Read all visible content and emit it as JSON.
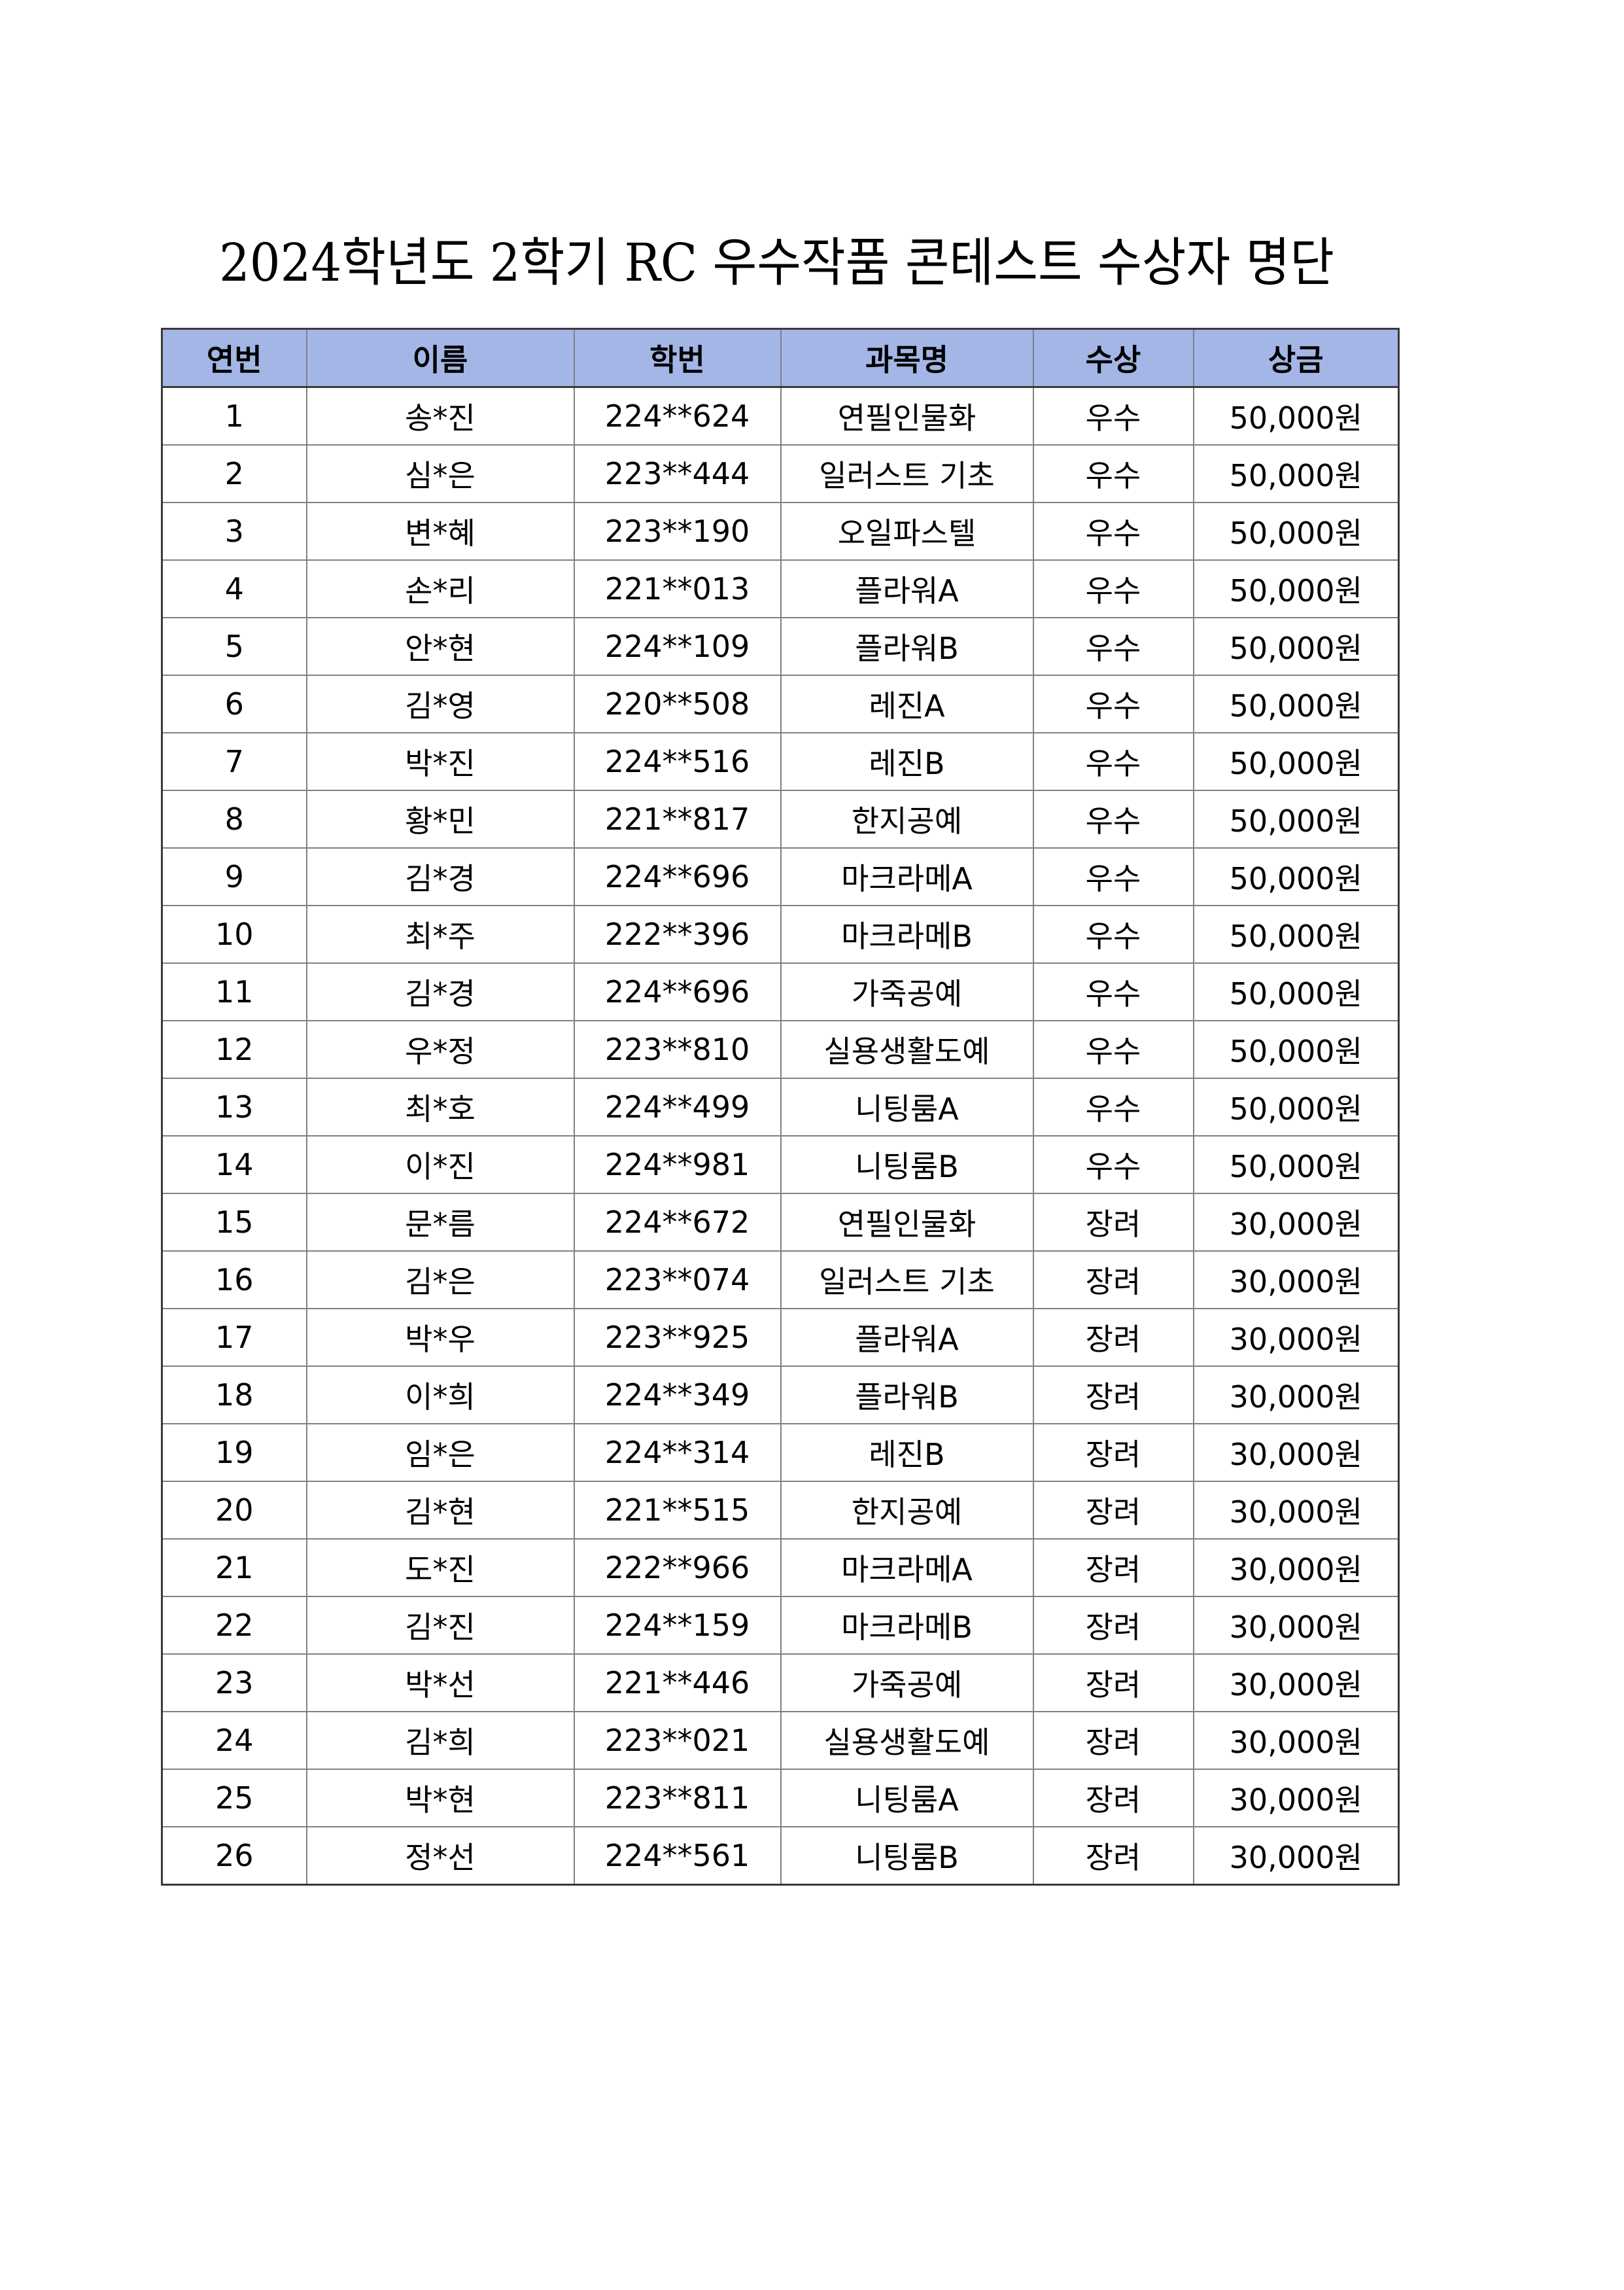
{
  "title": "2024학년도 2학기 RC 우수작품 콘테스트 수상자 명단",
  "colors": {
    "header_bg": "#a3b6e5"
  },
  "table": {
    "headers": [
      "연번",
      "이름",
      "학번",
      "과목명",
      "수상",
      "상금"
    ],
    "rows": [
      [
        "1",
        "송*진",
        "224**624",
        "연필인물화",
        "우수",
        "50,000원"
      ],
      [
        "2",
        "심*은",
        "223**444",
        "일러스트 기초",
        "우수",
        "50,000원"
      ],
      [
        "3",
        "변*혜",
        "223**190",
        "오일파스텔",
        "우수",
        "50,000원"
      ],
      [
        "4",
        "손*리",
        "221**013",
        "플라워A",
        "우수",
        "50,000원"
      ],
      [
        "5",
        "안*현",
        "224**109",
        "플라워B",
        "우수",
        "50,000원"
      ],
      [
        "6",
        "김*영",
        "220**508",
        "레진A",
        "우수",
        "50,000원"
      ],
      [
        "7",
        "박*진",
        "224**516",
        "레진B",
        "우수",
        "50,000원"
      ],
      [
        "8",
        "황*민",
        "221**817",
        "한지공예",
        "우수",
        "50,000원"
      ],
      [
        "9",
        "김*경",
        "224**696",
        "마크라메A",
        "우수",
        "50,000원"
      ],
      [
        "10",
        "최*주",
        "222**396",
        "마크라메B",
        "우수",
        "50,000원"
      ],
      [
        "11",
        "김*경",
        "224**696",
        "가죽공예",
        "우수",
        "50,000원"
      ],
      [
        "12",
        "우*정",
        "223**810",
        "실용생활도예",
        "우수",
        "50,000원"
      ],
      [
        "13",
        "최*호",
        "224**499",
        "니팅룸A",
        "우수",
        "50,000원"
      ],
      [
        "14",
        "이*진",
        "224**981",
        "니팅룸B",
        "우수",
        "50,000원"
      ],
      [
        "15",
        "문*름",
        "224**672",
        "연필인물화",
        "장려",
        "30,000원"
      ],
      [
        "16",
        "김*은",
        "223**074",
        "일러스트 기초",
        "장려",
        "30,000원"
      ],
      [
        "17",
        "박*우",
        "223**925",
        "플라워A",
        "장려",
        "30,000원"
      ],
      [
        "18",
        "이*희",
        "224**349",
        "플라워B",
        "장려",
        "30,000원"
      ],
      [
        "19",
        "임*은",
        "224**314",
        "레진B",
        "장려",
        "30,000원"
      ],
      [
        "20",
        "김*현",
        "221**515",
        "한지공예",
        "장려",
        "30,000원"
      ],
      [
        "21",
        "도*진",
        "222**966",
        "마크라메A",
        "장려",
        "30,000원"
      ],
      [
        "22",
        "김*진",
        "224**159",
        "마크라메B",
        "장려",
        "30,000원"
      ],
      [
        "23",
        "박*선",
        "221**446",
        "가죽공예",
        "장려",
        "30,000원"
      ],
      [
        "24",
        "김*희",
        "223**021",
        "실용생활도예",
        "장려",
        "30,000원"
      ],
      [
        "25",
        "박*현",
        "223**811",
        "니팅룸A",
        "장려",
        "30,000원"
      ],
      [
        "26",
        "정*선",
        "224**561",
        "니팅룸B",
        "장려",
        "30,000원"
      ]
    ]
  }
}
